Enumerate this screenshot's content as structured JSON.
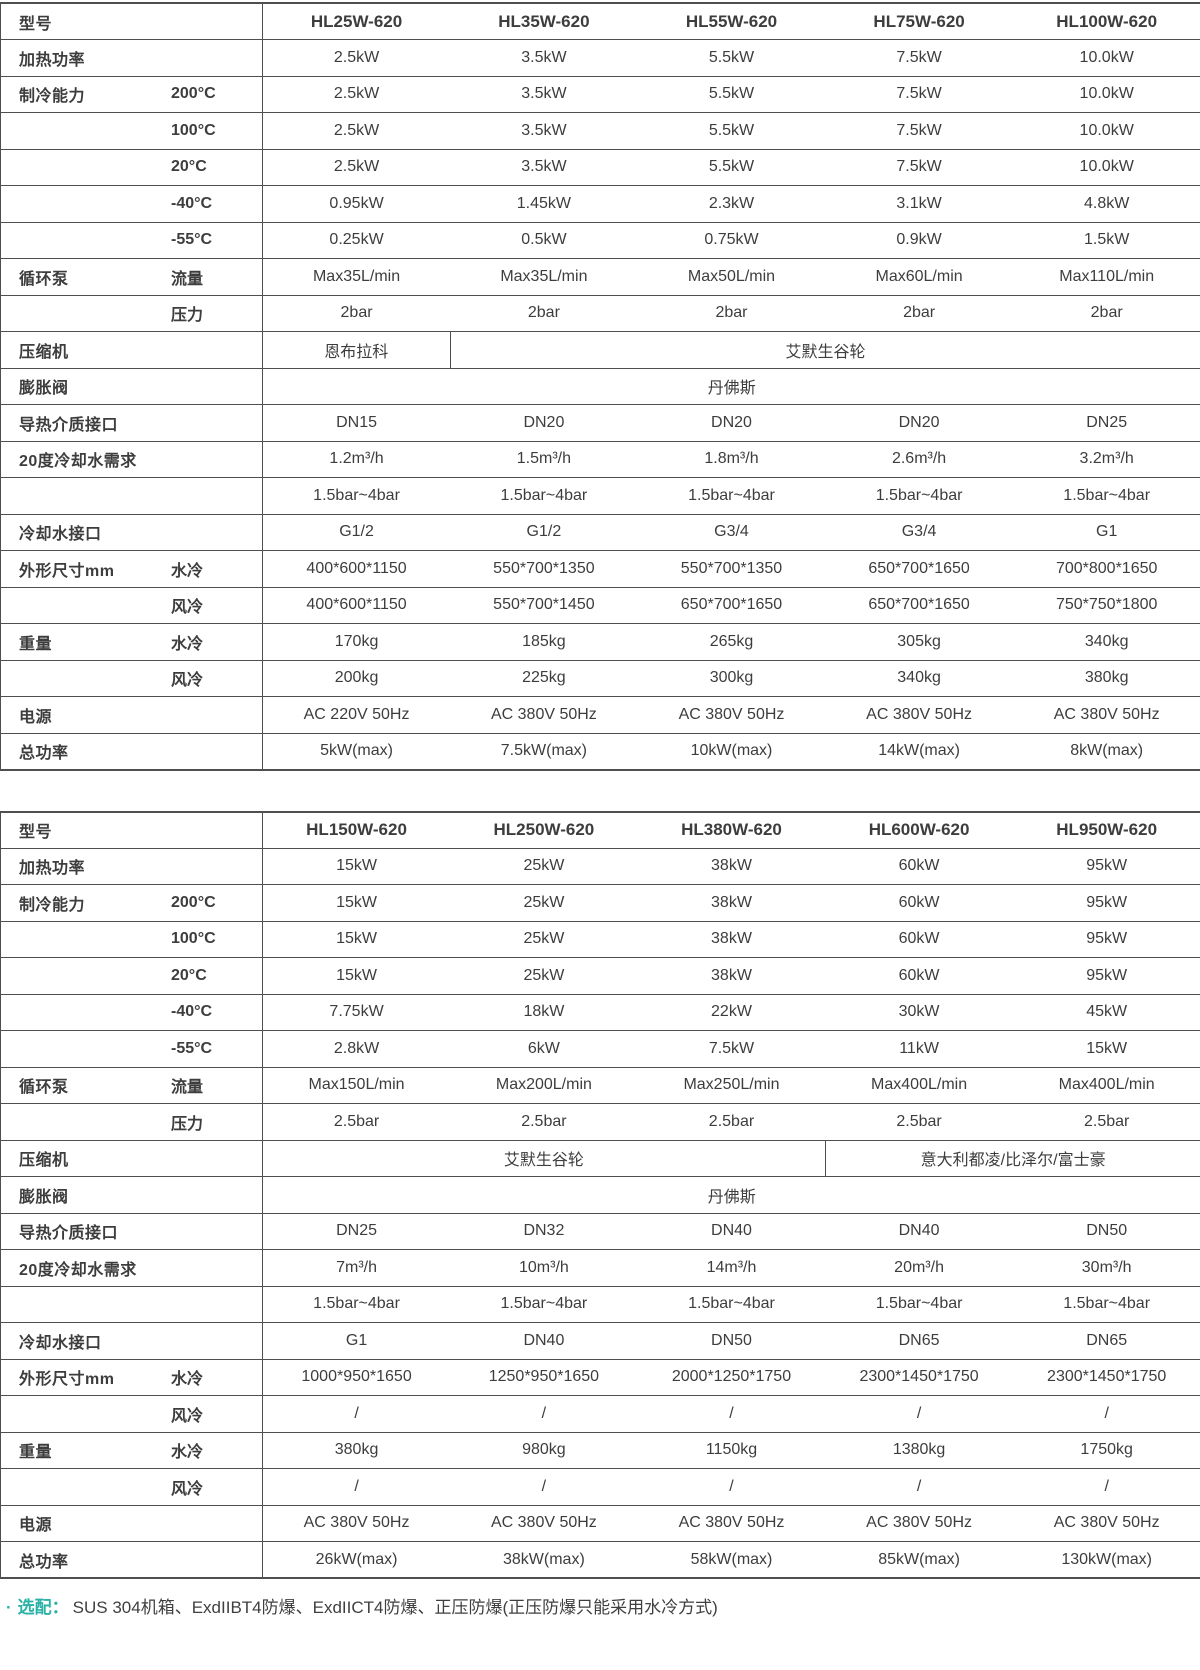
{
  "colors": {
    "accent": "#2bb2a6",
    "text": "#3d3d3d",
    "border": "#4f4f4f"
  },
  "tables": [
    {
      "name": "spec-table-hl25-hl100",
      "rows": [
        {
          "type": "header",
          "label": "型号",
          "sub": "",
          "cells": [
            "HL25W-620",
            "HL35W-620",
            "HL55W-620",
            "HL75W-620",
            "HL100W-620"
          ]
        },
        {
          "label": "加热功率",
          "sub": "",
          "cells": [
            "2.5kW",
            "3.5kW",
            "5.5kW",
            "7.5kW",
            "10.0kW"
          ]
        },
        {
          "label": "制冷能力",
          "sub": "200°C",
          "cells": [
            "2.5kW",
            "3.5kW",
            "5.5kW",
            "7.5kW",
            "10.0kW"
          ]
        },
        {
          "label": "",
          "sub": "100°C",
          "cells": [
            "2.5kW",
            "3.5kW",
            "5.5kW",
            "7.5kW",
            "10.0kW"
          ]
        },
        {
          "label": "",
          "sub": "20°C",
          "cells": [
            "2.5kW",
            "3.5kW",
            "5.5kW",
            "7.5kW",
            "10.0kW"
          ]
        },
        {
          "label": "",
          "sub": "-40°C",
          "cells": [
            "0.95kW",
            "1.45kW",
            "2.3kW",
            "3.1kW",
            "4.8kW"
          ]
        },
        {
          "label": "",
          "sub": "-55°C",
          "cells": [
            "0.25kW",
            "0.5kW",
            "0.75kW",
            "0.9kW",
            "1.5kW"
          ]
        },
        {
          "label": "循环泵",
          "sub": "流量",
          "cells": [
            "Max35L/min",
            "Max35L/min",
            "Max50L/min",
            "Max60L/min",
            "Max110L/min"
          ]
        },
        {
          "label": "",
          "sub": "压力",
          "cells": [
            "2bar",
            "2bar",
            "2bar",
            "2bar",
            "2bar"
          ]
        },
        {
          "label": "压缩机",
          "sub": "",
          "cells": [
            {
              "text": "恩布拉科",
              "span": 1
            },
            {
              "text": "艾默生谷轮",
              "span": 4
            }
          ]
        },
        {
          "label": "膨胀阀",
          "sub": "",
          "cells": [
            {
              "text": "丹佛斯",
              "span": 5
            }
          ]
        },
        {
          "label": "导热介质接口",
          "sub": "",
          "cells": [
            "DN15",
            "DN20",
            "DN20",
            "DN20",
            "DN25"
          ]
        },
        {
          "label": "20度冷却水需求",
          "sub": "",
          "cells": [
            "1.2m³/h",
            "1.5m³/h",
            "1.8m³/h",
            "2.6m³/h",
            "3.2m³/h"
          ]
        },
        {
          "label": "",
          "sub": "",
          "cells": [
            "1.5bar~4bar",
            "1.5bar~4bar",
            "1.5bar~4bar",
            "1.5bar~4bar",
            "1.5bar~4bar"
          ]
        },
        {
          "label": "冷却水接口",
          "sub": "",
          "cells": [
            "G1/2",
            "G1/2",
            "G3/4",
            "G3/4",
            "G1"
          ]
        },
        {
          "label": "外形尺寸mm",
          "sub": "水冷",
          "cells": [
            "400*600*1150",
            "550*700*1350",
            "550*700*1350",
            "650*700*1650",
            "700*800*1650"
          ]
        },
        {
          "label": "",
          "sub": "风冷",
          "cells": [
            "400*600*1150",
            "550*700*1450",
            "650*700*1650",
            "650*700*1650",
            "750*750*1800"
          ]
        },
        {
          "label": "重量",
          "sub": "水冷",
          "cells": [
            "170kg",
            "185kg",
            "265kg",
            "305kg",
            "340kg"
          ]
        },
        {
          "label": "",
          "sub": "风冷",
          "cells": [
            "200kg",
            "225kg",
            "300kg",
            "340kg",
            "380kg"
          ]
        },
        {
          "label": "电源",
          "sub": "",
          "cells": [
            "AC 220V 50Hz",
            "AC 380V 50Hz",
            "AC 380V 50Hz",
            "AC 380V 50Hz",
            "AC 380V 50Hz"
          ]
        },
        {
          "label": "总功率",
          "sub": "",
          "cells": [
            "5kW(max)",
            "7.5kW(max)",
            "10kW(max)",
            "14kW(max)",
            "8kW(max)"
          ]
        }
      ]
    },
    {
      "name": "spec-table-hl150-hl950",
      "rows": [
        {
          "type": "header",
          "label": "型号",
          "sub": "",
          "cells": [
            "HL150W-620",
            "HL250W-620",
            "HL380W-620",
            "HL600W-620",
            "HL950W-620"
          ]
        },
        {
          "label": "加热功率",
          "sub": "",
          "cells": [
            "15kW",
            "25kW",
            "38kW",
            "60kW",
            "95kW"
          ]
        },
        {
          "label": "制冷能力",
          "sub": "200°C",
          "cells": [
            "15kW",
            "25kW",
            "38kW",
            "60kW",
            "95kW"
          ]
        },
        {
          "label": "",
          "sub": "100°C",
          "cells": [
            "15kW",
            "25kW",
            "38kW",
            "60kW",
            "95kW"
          ]
        },
        {
          "label": "",
          "sub": "20°C",
          "cells": [
            "15kW",
            "25kW",
            "38kW",
            "60kW",
            "95kW"
          ]
        },
        {
          "label": "",
          "sub": "-40°C",
          "cells": [
            "7.75kW",
            "18kW",
            "22kW",
            "30kW",
            "45kW"
          ]
        },
        {
          "label": "",
          "sub": "-55°C",
          "cells": [
            "2.8kW",
            "6kW",
            "7.5kW",
            "11kW",
            "15kW"
          ]
        },
        {
          "label": "循环泵",
          "sub": "流量",
          "cells": [
            "Max150L/min",
            "Max200L/min",
            "Max250L/min",
            "Max400L/min",
            "Max400L/min"
          ]
        },
        {
          "label": "",
          "sub": "压力",
          "cells": [
            "2.5bar",
            "2.5bar",
            "2.5bar",
            "2.5bar",
            "2.5bar"
          ]
        },
        {
          "label": "压缩机",
          "sub": "",
          "cells": [
            {
              "text": "艾默生谷轮",
              "span": 3
            },
            {
              "text": "意大利都凌/比泽尔/富士豪",
              "span": 2
            }
          ]
        },
        {
          "label": "膨胀阀",
          "sub": "",
          "cells": [
            {
              "text": "丹佛斯",
              "span": 5
            }
          ]
        },
        {
          "label": "导热介质接口",
          "sub": "",
          "cells": [
            "DN25",
            "DN32",
            "DN40",
            "DN40",
            "DN50"
          ]
        },
        {
          "label": "20度冷却水需求",
          "sub": "",
          "cells": [
            "7m³/h",
            "10m³/h",
            "14m³/h",
            "20m³/h",
            "30m³/h"
          ]
        },
        {
          "label": "",
          "sub": "",
          "cells": [
            "1.5bar~4bar",
            "1.5bar~4bar",
            "1.5bar~4bar",
            "1.5bar~4bar",
            "1.5bar~4bar"
          ]
        },
        {
          "label": "冷却水接口",
          "sub": "",
          "cells": [
            "G1",
            "DN40",
            "DN50",
            "DN65",
            "DN65"
          ]
        },
        {
          "label": "外形尺寸mm",
          "sub": "水冷",
          "cells": [
            "1000*950*1650",
            "1250*950*1650",
            "2000*1250*1750",
            "2300*1450*1750",
            "2300*1450*1750"
          ]
        },
        {
          "label": "",
          "sub": "风冷",
          "cells": [
            "/",
            "/",
            "/",
            "/",
            "/"
          ]
        },
        {
          "label": "重量",
          "sub": "水冷",
          "cells": [
            "380kg",
            "980kg",
            "1150kg",
            "1380kg",
            "1750kg"
          ]
        },
        {
          "label": "",
          "sub": "风冷",
          "cells": [
            "/",
            "/",
            "/",
            "/",
            "/"
          ]
        },
        {
          "label": "电源",
          "sub": "",
          "cells": [
            "AC 380V 50Hz",
            "AC 380V 50Hz",
            "AC 380V 50Hz",
            "AC 380V 50Hz",
            "AC 380V 50Hz"
          ]
        },
        {
          "label": "总功率",
          "sub": "",
          "cells": [
            "26kW(max)",
            "38kW(max)",
            "58kW(max)",
            "85kW(max)",
            "130kW(max)"
          ]
        }
      ]
    }
  ],
  "footnote": {
    "bullet": "·",
    "label": "选配：",
    "text": "SUS 304机箱、ExdIIBT4防爆、ExdIICT4防爆、正压防爆(正压防爆只能采用水冷方式)"
  }
}
